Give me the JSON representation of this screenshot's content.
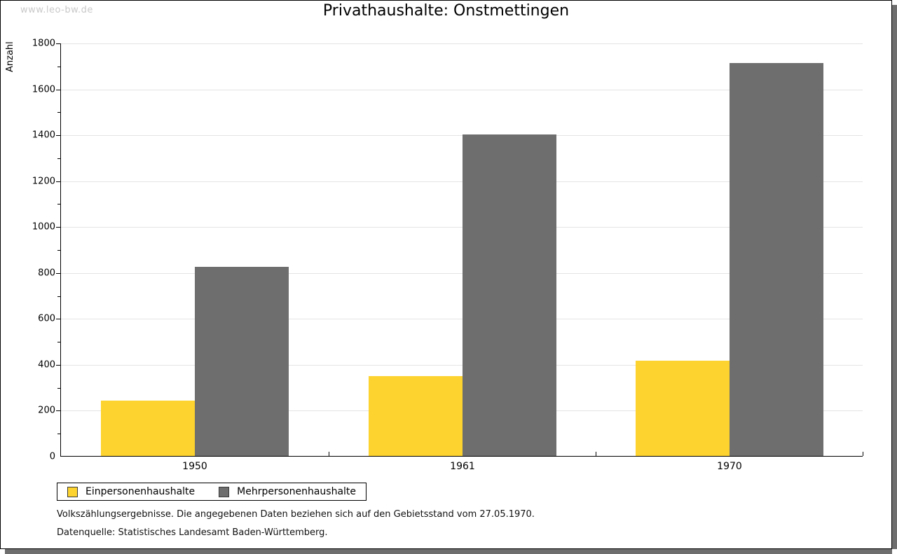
{
  "watermark": "www.leo-bw.de",
  "title": "Privathaushalte: Onstmettingen",
  "y_axis_label": "Anzahl",
  "footer": {
    "line1": "Volkszählungsergebnisse. Die angegebenen Daten beziehen sich auf den Gebietsstand vom 27.05.1970.",
    "line2": "Datenquelle: Statistisches Landesamt Baden-Württemberg."
  },
  "chart_data": {
    "type": "bar",
    "title": "Privathaushalte: Onstmettingen",
    "categories": [
      "1950",
      "1961",
      "1970"
    ],
    "series": [
      {
        "name": "Einpersonenhaushalte",
        "color": "#fdd32f",
        "values": [
          242,
          348,
          415
        ]
      },
      {
        "name": "Mehrpersonenhaushalte",
        "color": "#6e6e6e",
        "values": [
          825,
          1400,
          1713
        ]
      }
    ],
    "xlabel": "",
    "ylabel": "Anzahl",
    "ylim": [
      0,
      1800
    ],
    "ytick_step": 200,
    "yminor_step": 100,
    "grid": true,
    "gridline_color": "#e4e4e4",
    "legend_position": "bottom-left"
  }
}
